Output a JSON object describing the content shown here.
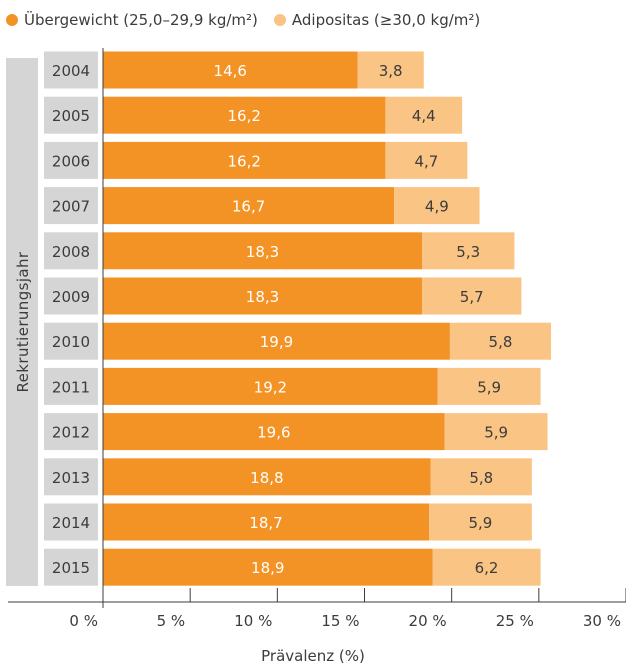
{
  "legend": [
    {
      "label": "Übergewicht (25,0–29,9 kg/m²)",
      "color": "#f39325"
    },
    {
      "label": "Adipositas (≥30,0 kg/m²)",
      "color": "#f9c484"
    }
  ],
  "chart_data": {
    "type": "bar",
    "orientation": "horizontal",
    "stacked": true,
    "categories": [
      "2004",
      "2005",
      "2006",
      "2007",
      "2008",
      "2009",
      "2010",
      "2011",
      "2012",
      "2013",
      "2014",
      "2015"
    ],
    "series": [
      {
        "name": "Übergewicht (25,0–29,9 kg/m²)",
        "color": "#f39325",
        "values": [
          14.6,
          16.2,
          16.2,
          16.7,
          18.3,
          18.3,
          19.9,
          19.2,
          19.6,
          18.8,
          18.7,
          18.9
        ],
        "labels": [
          "14,6",
          "16,2",
          "16,2",
          "16,7",
          "18,3",
          "18,3",
          "19,9",
          "19,2",
          "19,6",
          "18,8",
          "18,7",
          "18,9"
        ]
      },
      {
        "name": "Adipositas (≥30,0 kg/m²)",
        "color": "#f9c484",
        "values": [
          3.8,
          4.4,
          4.7,
          4.9,
          5.3,
          5.7,
          5.8,
          5.9,
          5.9,
          5.8,
          5.9,
          6.2
        ],
        "labels": [
          "3,8",
          "4,4",
          "4,7",
          "4,9",
          "5,3",
          "5,7",
          "5,8",
          "5,9",
          "5,9",
          "5,8",
          "5,9",
          "6,2"
        ]
      }
    ],
    "xlabel": "Prävalenz (%)",
    "ylabel": "Rekrutierungsjahr",
    "xlim": [
      0,
      30
    ],
    "xticks": [
      0,
      5,
      10,
      15,
      20,
      25,
      30
    ],
    "xtick_labels": [
      "0 %",
      "5 %",
      "10 %",
      "15 %",
      "20 %",
      "25 %",
      "30 %"
    ],
    "legend_position": "top-left",
    "grid": false
  }
}
